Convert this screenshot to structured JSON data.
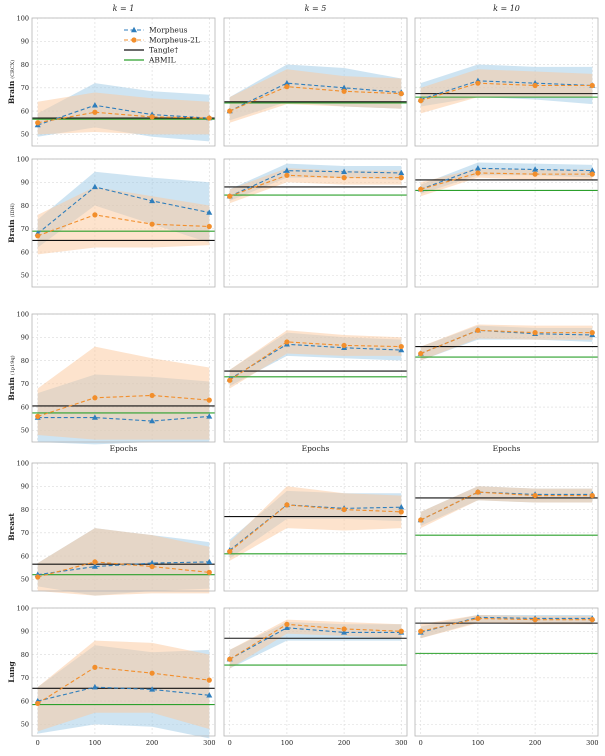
{
  "figure": {
    "column_titles": [
      "k = 1",
      "k = 5",
      "k = 10"
    ],
    "row_labels": [
      {
        "main": "Brain",
        "sub": "(CRCX)"
      },
      {
        "main": "Brain",
        "sub": "(IDH)"
      },
      {
        "main": "Brain",
        "sub": "(1p19q)"
      },
      {
        "main": "Breast",
        "sub": ""
      },
      {
        "main": "Lung",
        "sub": ""
      }
    ],
    "epochs_label": "Epochs",
    "legend": [
      {
        "label": "Morpheus",
        "color": "#2f7ebc",
        "kind": "dashed-triangle"
      },
      {
        "label": "Morpheus-2L",
        "color": "#f28e2b",
        "kind": "dashed-circle"
      },
      {
        "label": "Tangle†",
        "color": "#111111",
        "kind": "solid"
      },
      {
        "label": "ABMIL",
        "color": "#2ca02c",
        "kind": "solid"
      }
    ],
    "x_tick_labels": [
      "0",
      "100",
      "200",
      "300"
    ]
  },
  "chart_data": {
    "type": "line",
    "x": [
      0,
      100,
      200,
      300
    ],
    "xlim": [
      -10,
      310
    ],
    "colors": {
      "morpheus": "#2f7ebc",
      "morpheus2l": "#f28e2b",
      "tangle": "#111111",
      "abmil": "#2ca02c",
      "morpheus_band": "#9ec9e6",
      "morpheus2l_band": "#fcc79c"
    },
    "rows": [
      {
        "ylim": [
          45,
          100
        ],
        "yticks": [
          50,
          60,
          70,
          80,
          90,
          100
        ],
        "panels": [
          {
            "morpheus": [
              54,
              62.5,
              58.5,
              57
            ],
            "morpheus_band": [
              [
                49,
                59
              ],
              [
                53,
                72
              ],
              [
                49,
                68.5
              ],
              [
                47,
                67
              ]
            ],
            "morpheus2l": [
              55,
              59.5,
              57.5,
              57
            ],
            "morpheus2l_band": [
              [
                50,
                64
              ],
              [
                51,
                68
              ],
              [
                50,
                65.5
              ],
              [
                50,
                64
              ]
            ],
            "tangle": 57,
            "abmil": 56.5
          },
          {
            "morpheus": [
              60,
              72,
              70,
              68
            ],
            "morpheus_band": [
              [
                56,
                66
              ],
              [
                64,
                80
              ],
              [
                62,
                78.5
              ],
              [
                61,
                74
              ]
            ],
            "morpheus2l": [
              60,
              70.5,
              68.5,
              67.5
            ],
            "morpheus2l_band": [
              [
                55,
                66
              ],
              [
                63,
                78
              ],
              [
                62,
                75
              ],
              [
                61,
                74
              ]
            ],
            "tangle": 64,
            "abmil": 63.5
          },
          {
            "morpheus": [
              65,
              73,
              72,
              71
            ],
            "morpheus_band": [
              [
                62,
                72
              ],
              [
                66,
                80
              ],
              [
                65,
                79
              ],
              [
                63,
                79
              ]
            ],
            "morpheus2l": [
              64.5,
              72,
              71,
              71
            ],
            "morpheus2l_band": [
              [
                59,
                70
              ],
              [
                66,
                78
              ],
              [
                66,
                77
              ],
              [
                66,
                76
              ]
            ],
            "tangle": 67.5,
            "abmil": 66
          }
        ]
      },
      {
        "ylim": [
          45,
          100
        ],
        "yticks": [
          50,
          60,
          70,
          80,
          90,
          100
        ],
        "panels": [
          {
            "morpheus": [
              68,
              88,
              82,
              77
            ],
            "morpheus_band": [
              [
                62,
                74
              ],
              [
                80,
                94.5
              ],
              [
                72,
                92
              ],
              [
                64,
                90
              ]
            ],
            "morpheus2l": [
              67,
              76,
              72,
              71
            ],
            "morpheus2l_band": [
              [
                59,
                76
              ],
              [
                62,
                88
              ],
              [
                62,
                84
              ],
              [
                63,
                80
              ]
            ],
            "tangle": 65,
            "abmil": 69
          },
          {
            "morpheus": [
              84,
              95,
              94.5,
              94
            ],
            "morpheus_band": [
              [
                82,
                87
              ],
              [
                92,
                98
              ],
              [
                92,
                97
              ],
              [
                91,
                97
              ]
            ],
            "morpheus2l": [
              84,
              93,
              92,
              92
            ],
            "morpheus2l_band": [
              [
                81,
                87
              ],
              [
                90,
                96
              ],
              [
                89,
                95
              ],
              [
                89,
                95
              ]
            ],
            "tangle": 88,
            "abmil": 84.5
          },
          {
            "morpheus": [
              87,
              96,
              95.5,
              95
            ],
            "morpheus_band": [
              [
                85,
                89
              ],
              [
                93,
                98.5
              ],
              [
                93,
                98
              ],
              [
                92,
                97.5
              ]
            ],
            "morpheus2l": [
              87,
              94,
              93.5,
              93.5
            ],
            "morpheus2l_band": [
              [
                84,
                90
              ],
              [
                92,
                96
              ],
              [
                91,
                95.5
              ],
              [
                91,
                95.5
              ]
            ],
            "tangle": 91,
            "abmil": 86.5
          }
        ]
      },
      {
        "ylim": [
          45,
          100
        ],
        "yticks": [
          50,
          60,
          70,
          80,
          90,
          100
        ],
        "panels": [
          {
            "morpheus": [
              55.5,
              55.5,
              54,
              56
            ],
            "morpheus_band": [
              [
                45,
                66
              ],
              [
                44,
                74
              ],
              [
                45,
                73
              ],
              [
                45,
                71
              ]
            ],
            "morpheus2l": [
              56,
              64,
              65,
              63
            ],
            "morpheus2l_band": [
              [
                48,
                68
              ],
              [
                46,
                86
              ],
              [
                46,
                81
              ],
              [
                46,
                77
              ]
            ],
            "tangle": 60.5,
            "abmil": 57.5
          },
          {
            "morpheus": [
              72,
              87,
              85.5,
              84.5
            ],
            "morpheus_band": [
              [
                69,
                76
              ],
              [
                82,
                92
              ],
              [
                81,
                90
              ],
              [
                80,
                89
              ]
            ],
            "morpheus2l": [
              71.5,
              88,
              86.5,
              86
            ],
            "morpheus2l_band": [
              [
                68,
                76
              ],
              [
                83,
                93
              ],
              [
                82,
                91
              ],
              [
                82,
                90
              ]
            ],
            "tangle": 75.5,
            "abmil": 73
          },
          {
            "morpheus": [
              83,
              93,
              91.5,
              91
            ],
            "morpheus_band": [
              [
                80,
                86
              ],
              [
                89,
                95
              ],
              [
                89,
                94
              ],
              [
                88,
                94
              ]
            ],
            "morpheus2l": [
              83,
              93,
              92,
              92
            ],
            "morpheus2l_band": [
              [
                80,
                86
              ],
              [
                89.5,
                95.5
              ],
              [
                89,
                95
              ],
              [
                89,
                95
              ]
            ],
            "tangle": 86,
            "abmil": 81.5
          }
        ]
      },
      {
        "ylim": [
          45,
          100
        ],
        "yticks": [
          50,
          60,
          70,
          80,
          90,
          100
        ],
        "panels": [
          {
            "morpheus": [
              52,
              55.5,
              57,
              57.5
            ],
            "morpheus_band": [
              [
                47,
                57
              ],
              [
                43,
                72
              ],
              [
                45,
                69
              ],
              [
                46,
                66
              ]
            ],
            "morpheus2l": [
              51,
              57.5,
              55.5,
              53
            ],
            "morpheus2l_band": [
              [
                45,
                57
              ],
              [
                43,
                72
              ],
              [
                44,
                69
              ],
              [
                44,
                64
              ]
            ],
            "tangle": 56.5,
            "abmil": 52
          },
          {
            "morpheus": [
              62.5,
              82,
              80.5,
              81
            ],
            "morpheus_band": [
              [
                59,
                67
              ],
              [
                76,
                88
              ],
              [
                76,
                87
              ],
              [
                75,
                87
              ]
            ],
            "morpheus2l": [
              62,
              82,
              80,
              79
            ],
            "morpheus2l_band": [
              [
                58,
                66
              ],
              [
                72,
                90
              ],
              [
                71,
                87
              ],
              [
                72,
                86
              ]
            ],
            "tangle": 77,
            "abmil": 61
          },
          {
            "morpheus": [
              75.5,
              87.5,
              86.5,
              86.5
            ],
            "morpheus_band": [
              [
                73,
                79
              ],
              [
                84,
                90
              ],
              [
                83,
                89
              ],
              [
                83,
                89
              ]
            ],
            "morpheus2l": [
              75.5,
              87.5,
              86,
              86
            ],
            "morpheus2l_band": [
              [
                72,
                79
              ],
              [
                84,
                90
              ],
              [
                83,
                89
              ],
              [
                83,
                89
              ]
            ],
            "tangle": 85,
            "abmil": 69
          }
        ]
      },
      {
        "ylim": [
          45,
          100
        ],
        "yticks": [
          50,
          60,
          70,
          80,
          90,
          100
        ],
        "panels": [
          {
            "morpheus": [
              60,
              66,
              65,
              62.5
            ],
            "morpheus_band": [
              [
                46,
                66
              ],
              [
                50,
                84
              ],
              [
                49,
                81
              ],
              [
                44,
                82
              ]
            ],
            "morpheus2l": [
              59,
              74.5,
              72,
              69
            ],
            "morpheus2l_band": [
              [
                47,
                66
              ],
              [
                55,
                86
              ],
              [
                55,
                85
              ],
              [
                48,
                80
              ]
            ],
            "tangle": 65.5,
            "abmil": 58.5
          },
          {
            "morpheus": [
              78,
              91.5,
              89.5,
              89.5
            ],
            "morpheus_band": [
              [
                74,
                82
              ],
              [
                86,
                94
              ],
              [
                86,
                93
              ],
              [
                86,
                93
              ]
            ],
            "morpheus2l": [
              78,
              93,
              91,
              90
            ],
            "morpheus2l_band": [
              [
                74,
                82
              ],
              [
                89,
                95
              ],
              [
                88,
                94
              ],
              [
                87,
                93
              ]
            ],
            "tangle": 87,
            "abmil": 75.5
          },
          {
            "morpheus": [
              89.5,
              96,
              95.5,
              95.5
            ],
            "morpheus_band": [
              [
                87,
                92
              ],
              [
                94,
                97
              ],
              [
                94,
                97
              ],
              [
                93,
                97
              ]
            ],
            "morpheus2l": [
              90,
              95.5,
              95,
              95
            ],
            "morpheus2l_band": [
              [
                87,
                93
              ],
              [
                93.5,
                97
              ],
              [
                93,
                96.5
              ],
              [
                93,
                96.5
              ]
            ],
            "tangle": 93.5,
            "abmil": 80.5
          }
        ]
      }
    ]
  }
}
